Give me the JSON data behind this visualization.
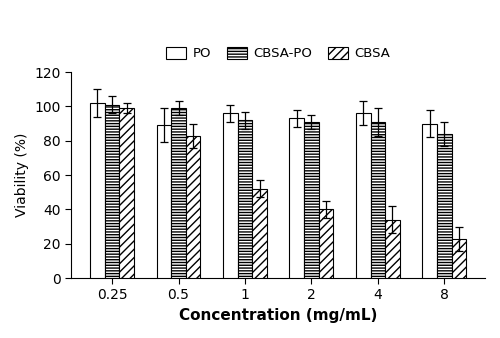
{
  "concentrations": [
    "0.25",
    "0.5",
    "1",
    "2",
    "4",
    "8"
  ],
  "PO_values": [
    102,
    89,
    96,
    93,
    96,
    90
  ],
  "PO_errors": [
    8,
    10,
    5,
    5,
    7,
    8
  ],
  "CBSA_PO_values": [
    101,
    99,
    92,
    91,
    91,
    84
  ],
  "CBSA_PO_errors": [
    5,
    4,
    5,
    4,
    8,
    7
  ],
  "CBSA_values": [
    99,
    83,
    52,
    40,
    34,
    23
  ],
  "CBSA_errors": [
    3,
    7,
    5,
    5,
    8,
    7
  ],
  "ylabel": "Viability (%)",
  "xlabel": "Concentration (mg/mL)",
  "ylim": [
    0,
    120
  ],
  "yticks": [
    0,
    20,
    40,
    60,
    80,
    100,
    120
  ],
  "legend_labels": [
    "PO",
    "CBSA-PO",
    "CBSA"
  ],
  "bar_width": 0.22,
  "figsize": [
    5.0,
    3.38
  ],
  "dpi": 100,
  "edgecolor": "black"
}
